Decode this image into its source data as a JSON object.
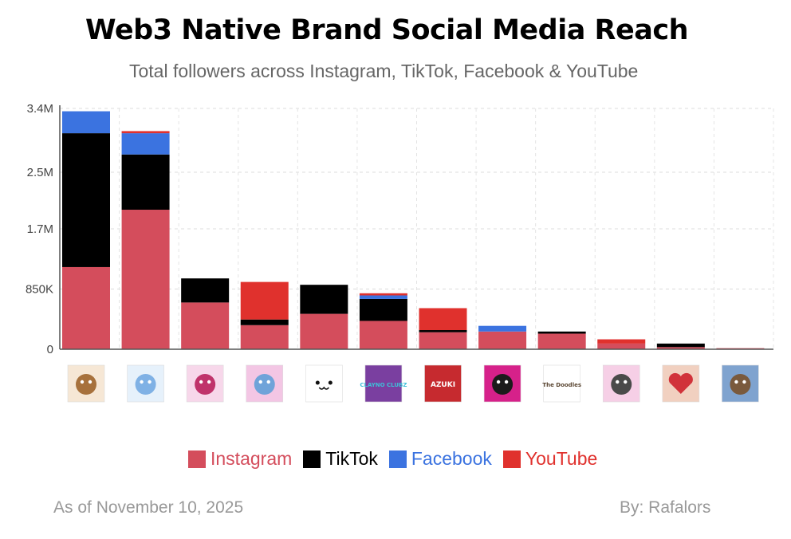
{
  "title": "Web3 Native Brand Social Media Reach",
  "subtitle": "Total followers across Instagram, TikTok, Facebook & YouTube",
  "footer": {
    "date": "As of November 10, 2025",
    "author": "By: Rafalors"
  },
  "colors": {
    "Instagram": "#d44d5c",
    "TikTok": "#000000",
    "Facebook": "#3b73e0",
    "YouTube": "#e0312d"
  },
  "chart_data": {
    "type": "bar",
    "stacked": true,
    "ylim": [
      0,
      3400000
    ],
    "yticks": [
      {
        "value": 0,
        "label": "0"
      },
      {
        "value": 850000,
        "label": "850K"
      },
      {
        "value": 1700000,
        "label": "1.7M"
      },
      {
        "value": 2500000,
        "label": "2.5M"
      },
      {
        "value": 3400000,
        "label": "3.4M"
      }
    ],
    "grid": true,
    "legend_position": "bottom",
    "categories": [
      "monkey",
      "penguin",
      "pink creature",
      "rainbow character",
      "cat face",
      "Clayno Club",
      "Azuki",
      "black cat",
      "The Doodles",
      "cat character",
      "red heart",
      "sloth"
    ],
    "category_icons": [
      "monkey-icon",
      "penguin-icon",
      "pink-creature-icon",
      "rainbow-character-icon",
      "cat-face-icon",
      "clayno-icon",
      "azuki-icon",
      "black-cat-icon",
      "doodles-icon",
      "cat-character-icon",
      "heart-icon",
      "sloth-icon"
    ],
    "icon_texts": [
      "",
      "",
      "",
      "",
      "",
      "CLAYNO CLUBZ",
      "AZUKI",
      "",
      "The Doodles",
      "",
      "",
      ""
    ],
    "series": [
      {
        "name": "Instagram",
        "values": [
          1160000,
          1970000,
          660000,
          340000,
          500000,
          400000,
          240000,
          250000,
          220000,
          80000,
          30000,
          15000
        ]
      },
      {
        "name": "TikTok",
        "values": [
          1890000,
          780000,
          340000,
          80000,
          410000,
          310000,
          30000,
          0,
          30000,
          0,
          50000,
          0
        ]
      },
      {
        "name": "Facebook",
        "values": [
          310000,
          300000,
          0,
          0,
          0,
          50000,
          0,
          80000,
          0,
          0,
          0,
          0
        ]
      },
      {
        "name": "YouTube",
        "values": [
          0,
          30000,
          0,
          530000,
          0,
          30000,
          310000,
          0,
          0,
          60000,
          0,
          0
        ]
      }
    ]
  }
}
